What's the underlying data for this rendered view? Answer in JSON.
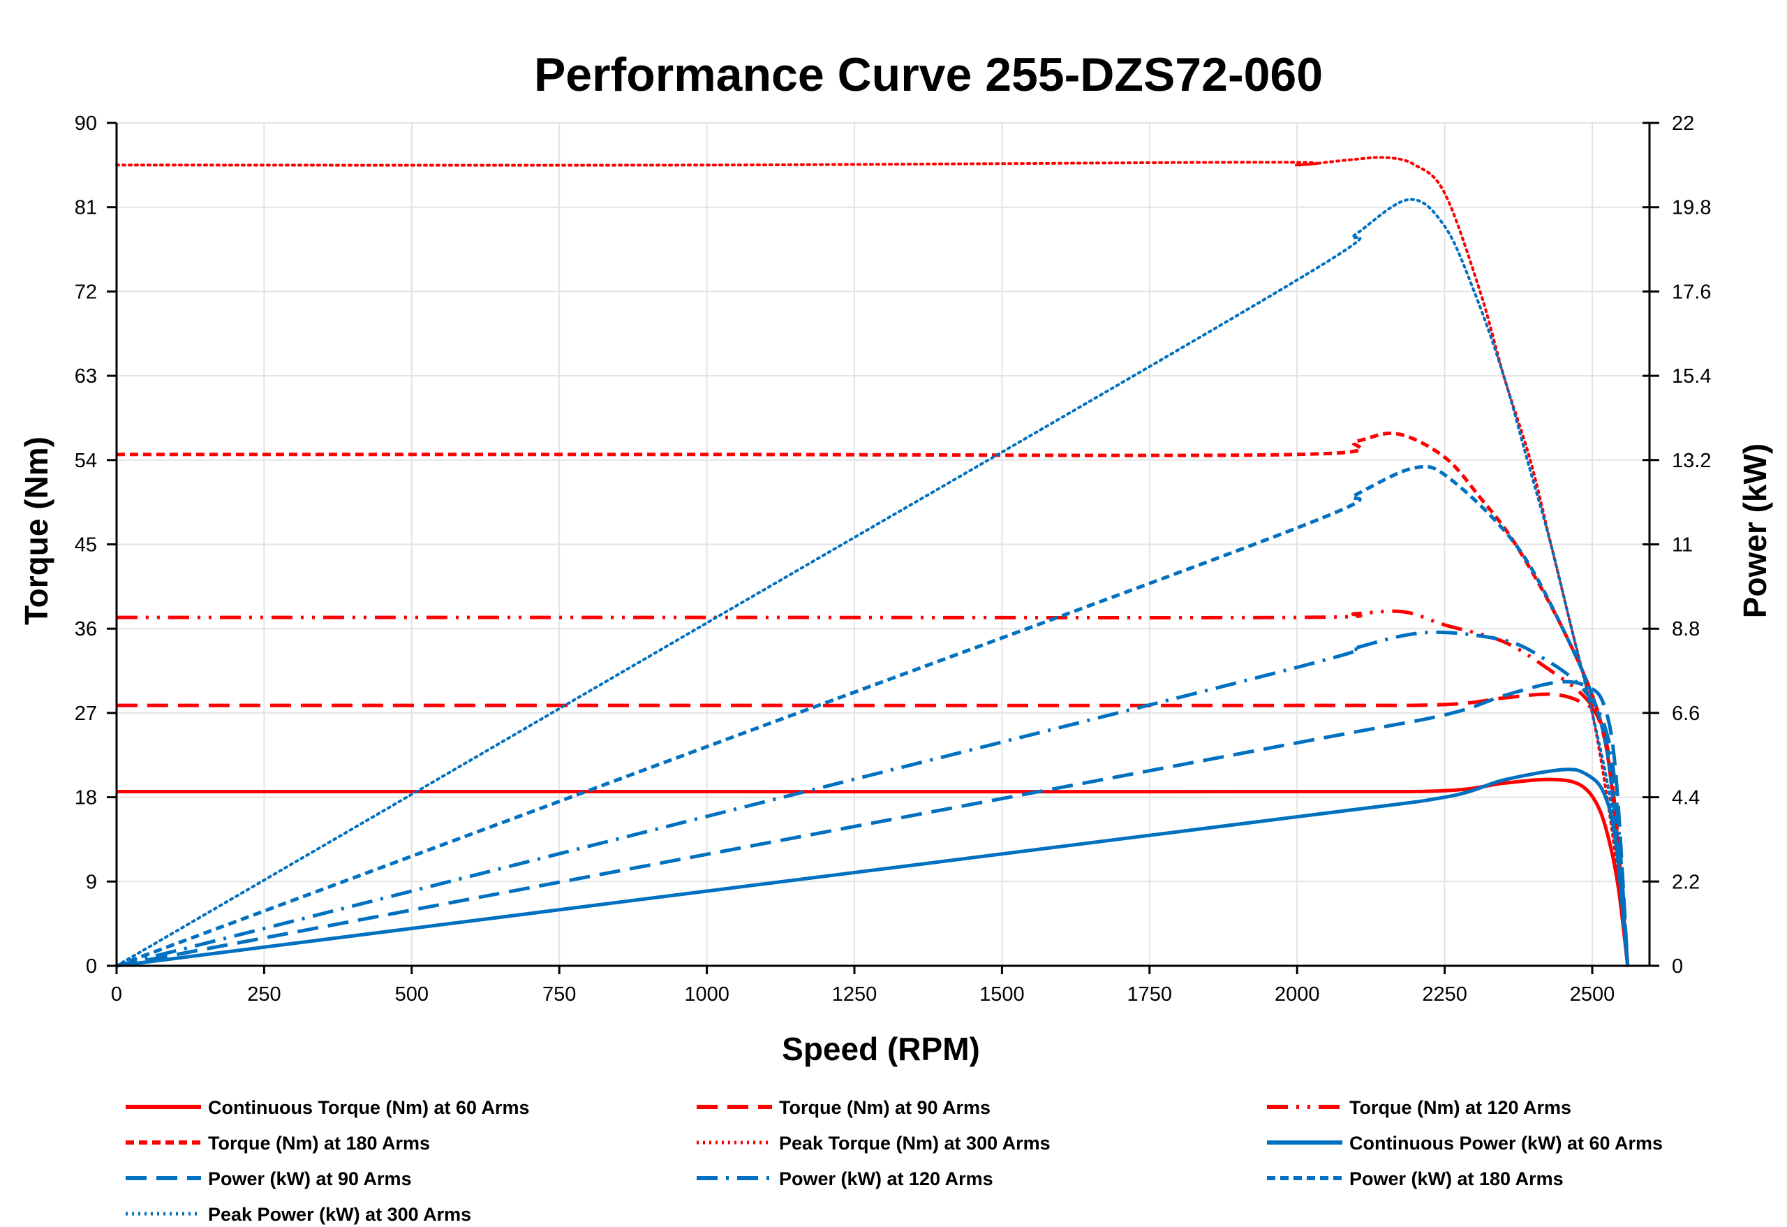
{
  "chart_data": {
    "type": "line",
    "title": "Performance Curve 255-DZS72-060",
    "xlabel": "Speed (RPM)",
    "ylabel": "Torque (Nm)",
    "y2label": "Power (kW)",
    "xlim": [
      0,
      2600
    ],
    "ylim": [
      0,
      90
    ],
    "y2lim": [
      0,
      22
    ],
    "xticks": [
      "0",
      "250",
      "500",
      "750",
      "1000",
      "1250",
      "1500",
      "1750",
      "2000",
      "2250",
      "2500"
    ],
    "yticks": [
      "0",
      "9",
      "18",
      "27",
      "36",
      "45",
      "54",
      "63",
      "72",
      "81",
      "90"
    ],
    "y2ticks": [
      "0",
      "2.2",
      "4.4",
      "6.6",
      "8.8",
      "11",
      "13.2",
      "15.4",
      "17.6",
      "19.8",
      "22"
    ],
    "grid": true,
    "legend_position": "bottom",
    "colors": {
      "torque": "#FF0000",
      "power": "#0070C0"
    },
    "series": [
      {
        "name": "Continuous Torque (Nm) at 60 Arms",
        "axis": "left",
        "color": "#FF0000",
        "style": "solid",
        "points": [
          [
            0,
            18.6
          ],
          [
            1000,
            18.6
          ],
          [
            2000,
            18.6
          ],
          [
            2250,
            18.7
          ],
          [
            2350,
            19.5
          ],
          [
            2430,
            19.9
          ],
          [
            2480,
            19.3
          ],
          [
            2510,
            17
          ],
          [
            2530,
            13
          ],
          [
            2545,
            8
          ],
          [
            2560,
            0
          ]
        ]
      },
      {
        "name": "Torque (Nm) at 90 Arms",
        "axis": "left",
        "color": "#FF0000",
        "style": "long-dash",
        "points": [
          [
            0,
            27.8
          ],
          [
            1000,
            27.8
          ],
          [
            2000,
            27.8
          ],
          [
            2250,
            27.9
          ],
          [
            2350,
            28.6
          ],
          [
            2430,
            29.0
          ],
          [
            2480,
            28.2
          ],
          [
            2510,
            26.5
          ],
          [
            2530,
            21
          ],
          [
            2545,
            12
          ],
          [
            2560,
            0
          ]
        ]
      },
      {
        "name": "Torque (Nm) at 120 Arms",
        "axis": "left",
        "color": "#FF0000",
        "style": "dash-dot-dot",
        "points": [
          [
            0,
            37.2
          ],
          [
            1000,
            37.2
          ],
          [
            2000,
            37.2
          ],
          [
            2100,
            37.6
          ],
          [
            2180,
            37.8
          ],
          [
            2250,
            36.4
          ],
          [
            2350,
            34.6
          ],
          [
            2430,
            31.5
          ],
          [
            2490,
            28.5
          ],
          [
            2520,
            25
          ],
          [
            2540,
            16
          ],
          [
            2560,
            0
          ]
        ]
      },
      {
        "name": "Torque (Nm) at 180 Arms",
        "axis": "left",
        "color": "#FF0000",
        "style": "short-dash",
        "points": [
          [
            0,
            54.6
          ],
          [
            1000,
            54.6
          ],
          [
            2000,
            54.6
          ],
          [
            2100,
            56
          ],
          [
            2170,
            56.8
          ],
          [
            2250,
            54.3
          ],
          [
            2310,
            50
          ],
          [
            2370,
            45
          ],
          [
            2450,
            36
          ],
          [
            2510,
            27
          ],
          [
            2535,
            18
          ],
          [
            2560,
            0
          ]
        ]
      },
      {
        "name": "Peak Torque (Nm) at 300 Arms",
        "axis": "left",
        "color": "#FF0000",
        "style": "dotted",
        "points": [
          [
            0,
            85.5
          ],
          [
            1000,
            85.5
          ],
          [
            1950,
            85.8
          ],
          [
            2000,
            85.5
          ],
          [
            2080,
            86
          ],
          [
            2150,
            86.3
          ],
          [
            2200,
            85.5
          ],
          [
            2250,
            82.5
          ],
          [
            2310,
            72
          ],
          [
            2350,
            63
          ],
          [
            2395,
            54
          ],
          [
            2430,
            45
          ],
          [
            2465,
            36
          ],
          [
            2500,
            27
          ],
          [
            2525,
            18
          ],
          [
            2545,
            9
          ],
          [
            2560,
            0
          ]
        ]
      },
      {
        "name": "Continuous Power (kW) at 60 Arms",
        "axis": "right",
        "color": "#0070C0",
        "style": "solid",
        "points": [
          [
            0,
            0
          ],
          [
            1000,
            1.95
          ],
          [
            2000,
            3.89
          ],
          [
            2250,
            4.4
          ],
          [
            2350,
            4.85
          ],
          [
            2450,
            5.12
          ],
          [
            2490,
            5.0
          ],
          [
            2520,
            4.5
          ],
          [
            2540,
            3.2
          ],
          [
            2560,
            0
          ]
        ]
      },
      {
        "name": "Power (kW) at 90 Arms",
        "axis": "right",
        "color": "#0070C0",
        "style": "long-dash",
        "points": [
          [
            0,
            0
          ],
          [
            1000,
            2.91
          ],
          [
            2000,
            5.82
          ],
          [
            2250,
            6.55
          ],
          [
            2350,
            7.05
          ],
          [
            2440,
            7.4
          ],
          [
            2490,
            7.3
          ],
          [
            2520,
            6.8
          ],
          [
            2540,
            5
          ],
          [
            2560,
            0
          ]
        ]
      },
      {
        "name": "Power (kW) at 120 Arms",
        "axis": "right",
        "color": "#0070C0",
        "style": "dash-dot",
        "points": [
          [
            0,
            0
          ],
          [
            1000,
            3.9
          ],
          [
            2000,
            7.79
          ],
          [
            2100,
            8.3
          ],
          [
            2220,
            8.7
          ],
          [
            2350,
            8.5
          ],
          [
            2420,
            8.0
          ],
          [
            2480,
            7.3
          ],
          [
            2520,
            6.3
          ],
          [
            2540,
            4.5
          ],
          [
            2560,
            0
          ]
        ]
      },
      {
        "name": "Power (kW) at 180 Arms",
        "axis": "right",
        "color": "#0070C0",
        "style": "short-dash",
        "points": [
          [
            0,
            0
          ],
          [
            1000,
            5.72
          ],
          [
            2000,
            11.43
          ],
          [
            2100,
            12.3
          ],
          [
            2200,
            13.0
          ],
          [
            2260,
            12.7
          ],
          [
            2370,
            11
          ],
          [
            2450,
            8.8
          ],
          [
            2510,
            6.6
          ],
          [
            2535,
            4.4
          ],
          [
            2560,
            0
          ]
        ]
      },
      {
        "name": "Peak Power (kW) at 300 Arms",
        "axis": "right",
        "color": "#0070C0",
        "style": "dotted",
        "points": [
          [
            0,
            0
          ],
          [
            1000,
            8.95
          ],
          [
            2000,
            17.9
          ],
          [
            2100,
            19.1
          ],
          [
            2190,
            20.0
          ],
          [
            2250,
            19.3
          ],
          [
            2300,
            17.6
          ],
          [
            2350,
            15.4
          ],
          [
            2390,
            13.2
          ],
          [
            2430,
            11
          ],
          [
            2465,
            8.8
          ],
          [
            2500,
            6.6
          ],
          [
            2530,
            4.4
          ],
          [
            2548,
            2.2
          ],
          [
            2560,
            0
          ]
        ]
      }
    ]
  }
}
